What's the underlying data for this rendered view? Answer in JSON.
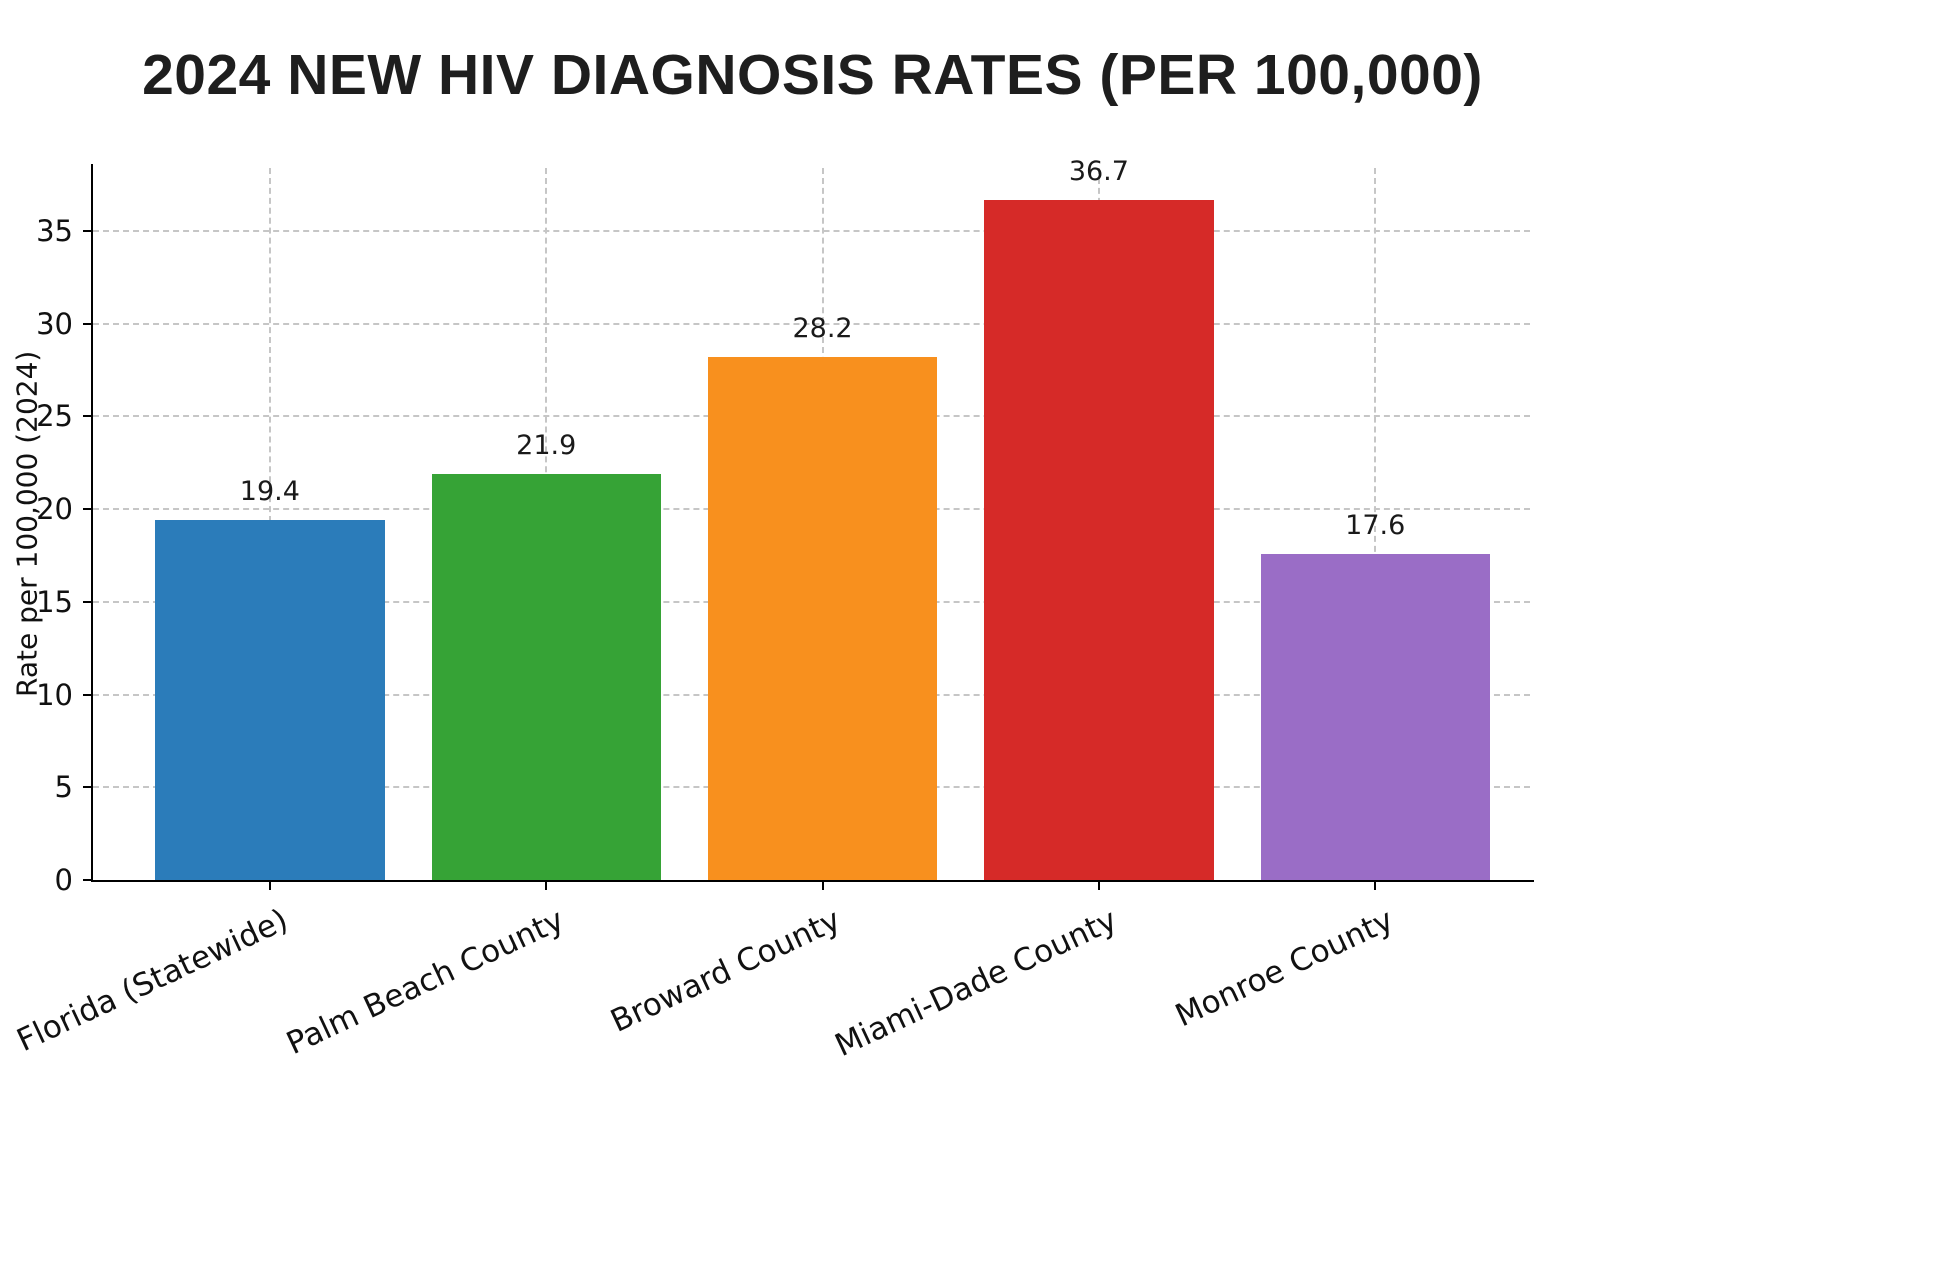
{
  "chart_data": {
    "type": "bar",
    "title": "2024 NEW HIV DIAGNOSIS RATES (PER 100,000)",
    "ylabel": "Rate per 100,000 (2024)",
    "categories": [
      "Florida (Statewide)",
      "Palm Beach County",
      "Broward County",
      "Miami-Dade County",
      "Monroe County"
    ],
    "values": [
      19.4,
      21.9,
      28.2,
      36.7,
      17.6
    ],
    "value_labels": [
      "19.4",
      "21.9",
      "28.2",
      "36.7",
      "17.6"
    ],
    "colors": [
      "#2b7cba",
      "#36a336",
      "#f8901e",
      "#d62a28",
      "#9a6dc6"
    ],
    "yticks": [
      0,
      5,
      10,
      15,
      20,
      25,
      30,
      35
    ],
    "ylim": [
      0,
      38.4
    ],
    "grid": "dashed, both axes, below bars",
    "legend": "none",
    "axis_color": "#000000",
    "grid_color": "#c6c6c6",
    "text_color": "#111111"
  }
}
